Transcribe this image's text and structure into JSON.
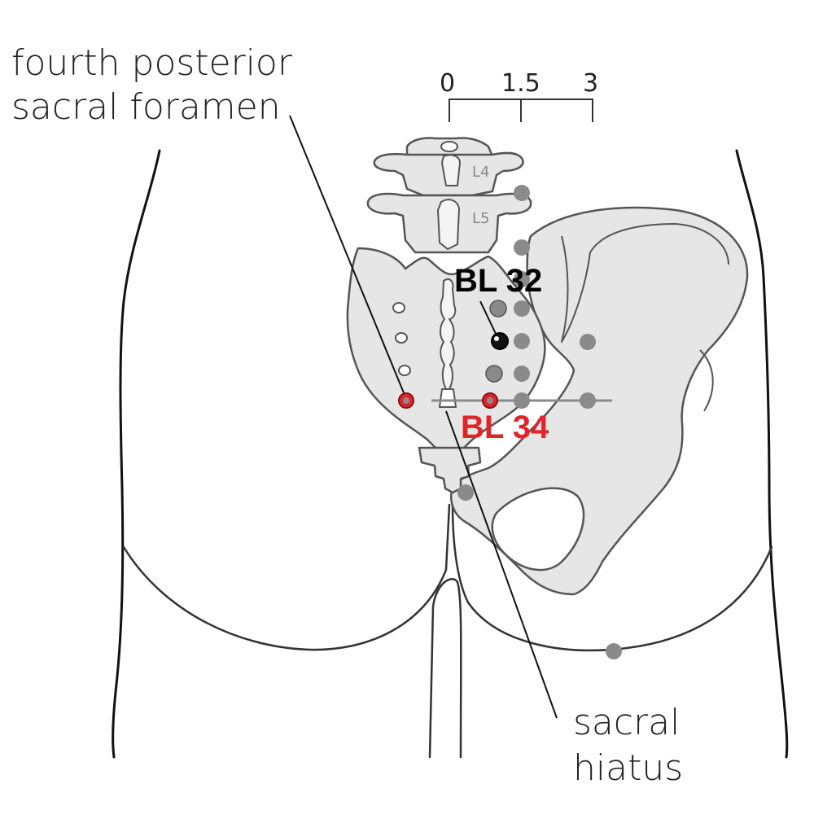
{
  "labels": {
    "foramen_line1": "fourth posterior",
    "foramen_line2": "sacral foramen",
    "hiatus_line1": "sacral",
    "hiatus_line2": "hiatus"
  },
  "scale": {
    "ticks": [
      "0",
      "1.5",
      "3"
    ]
  },
  "vertebrae": [
    "L4",
    "L5"
  ],
  "points": {
    "primary": {
      "label": "BL 32",
      "color": "#000000"
    },
    "highlight": {
      "label": "BL 34",
      "color": "#e1242a"
    },
    "neighbor_color": "#8a8a8a"
  },
  "colors": {
    "bone_fill": "#e6e6e6",
    "bone_stroke": "#555555",
    "body_stroke": "#111111"
  }
}
